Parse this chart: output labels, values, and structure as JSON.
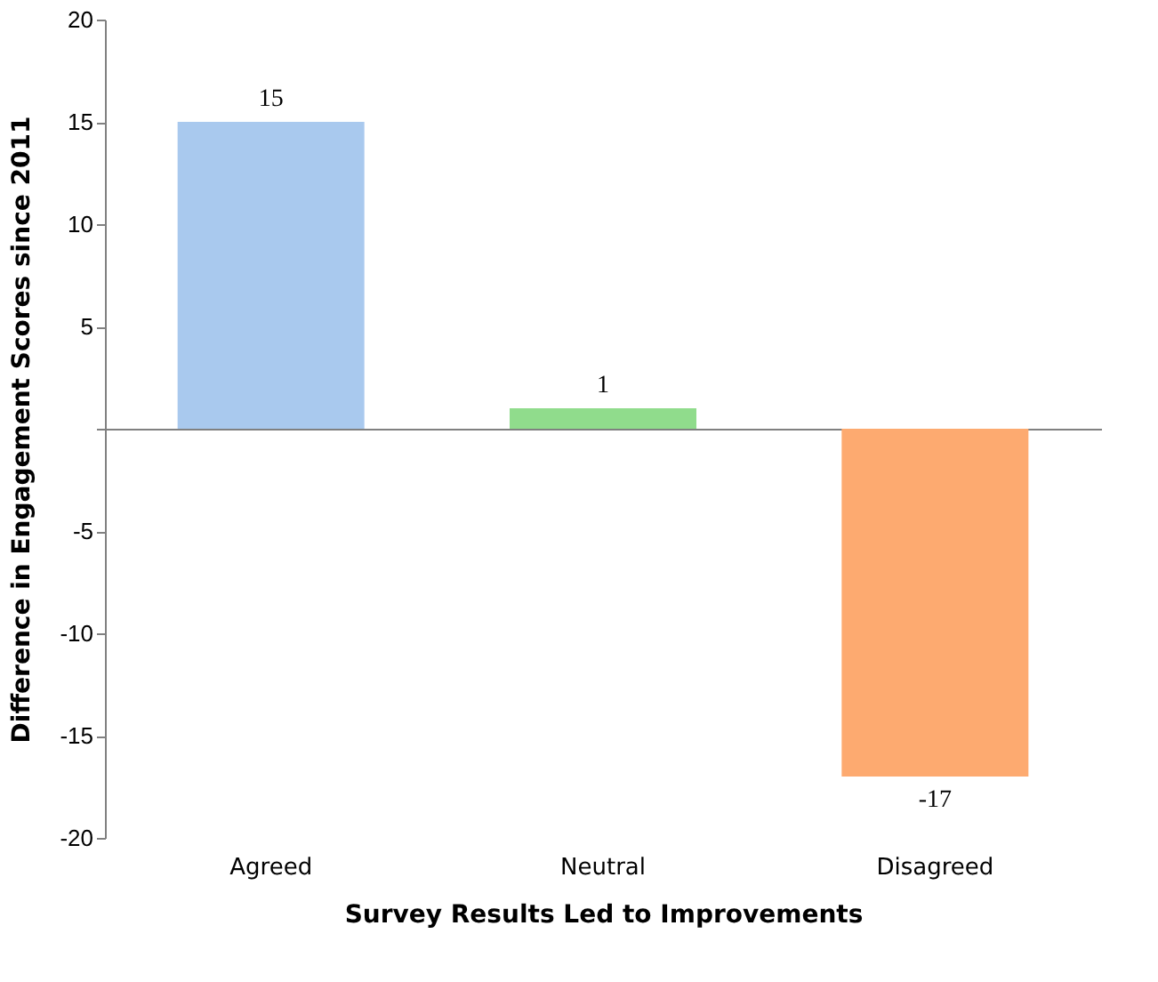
{
  "chart_data": {
    "type": "bar",
    "xlabel": "Survey Results Led to Improvements",
    "ylabel": "Difference in Engagement Scores since 2011",
    "categories": [
      "Agreed",
      "Neutral",
      "Disagreed"
    ],
    "values": [
      15,
      1,
      -17
    ],
    "colors": [
      "#a9c9ee",
      "#90dc8c",
      "#fdaa70"
    ],
    "data_labels": true,
    "ylim": [
      -20,
      20
    ],
    "yticks": [
      -20,
      -15,
      -10,
      -5,
      {
        "value": 0,
        "label": null
      },
      5,
      10,
      15,
      20
    ],
    "legend": false
  }
}
